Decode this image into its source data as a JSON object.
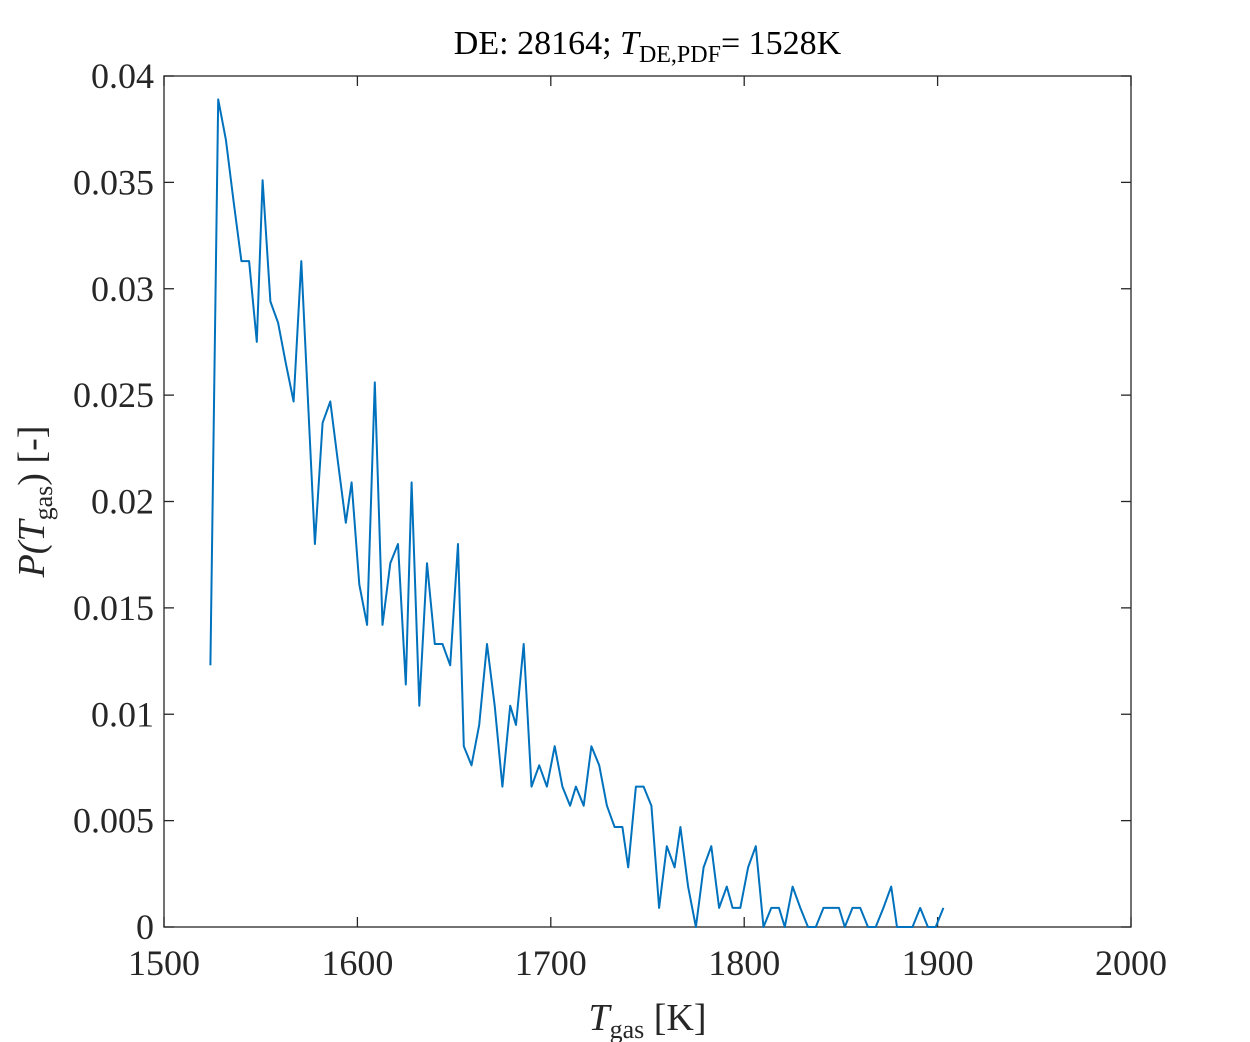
{
  "chart_data": {
    "type": "line",
    "title": "DE: 28164; T_DE,PDF= 1528K",
    "title_parts": {
      "prefix": "DE: 28164; ",
      "var": "T",
      "sub": "DE,PDF",
      "suffix": "= 1528K"
    },
    "xlabel": "T_gas [K]",
    "xlabel_parts": {
      "var": "T",
      "sub": "gas",
      "suffix": " [K]"
    },
    "ylabel": "P(T_gas) [-]",
    "ylabel_parts": {
      "prefix": "P(",
      "var": "T",
      "sub": "gas",
      "suffix": ") [-]"
    },
    "xlim": [
      1500,
      2000
    ],
    "ylim": [
      0,
      0.04
    ],
    "xticks": [
      1500,
      1600,
      1700,
      1800,
      1900,
      2000
    ],
    "xtick_labels": [
      "1500",
      "1600",
      "1700",
      "1800",
      "1900",
      "2000"
    ],
    "yticks": [
      0,
      0.005,
      0.01,
      0.015,
      0.02,
      0.025,
      0.03,
      0.035,
      0.04
    ],
    "ytick_labels": [
      "0",
      "0.005",
      "0.01",
      "0.015",
      "0.02",
      "0.025",
      "0.03",
      "0.035",
      "0.04"
    ],
    "grid": false,
    "line_color": "#0072BD",
    "axis_color": "#262626",
    "series": [
      {
        "x": [
          1524,
          1528,
          1532,
          1536,
          1540,
          1544,
          1548,
          1551,
          1555,
          1559,
          1563,
          1567,
          1571,
          1574,
          1578,
          1582,
          1586,
          1590,
          1594,
          1597,
          1601,
          1605,
          1609,
          1613,
          1617,
          1621,
          1625,
          1628,
          1632,
          1636,
          1640,
          1644,
          1648,
          1652,
          1655,
          1659,
          1663,
          1667,
          1671,
          1675,
          1679,
          1682,
          1686,
          1690,
          1694,
          1698,
          1702,
          1706,
          1710,
          1713,
          1717,
          1721,
          1725,
          1729,
          1733,
          1737,
          1740,
          1744,
          1748,
          1752,
          1756,
          1760,
          1764,
          1767,
          1771,
          1775,
          1779,
          1783,
          1787,
          1791,
          1794,
          1798,
          1802,
          1806,
          1810,
          1814,
          1818,
          1821,
          1825,
          1829,
          1833,
          1837,
          1841,
          1845,
          1849,
          1852,
          1856,
          1860,
          1864,
          1868,
          1872,
          1876,
          1879,
          1883,
          1887,
          1891,
          1895,
          1899,
          1903
        ],
        "y": [
          0.0123,
          0.0389,
          0.037,
          0.0341,
          0.0313,
          0.0313,
          0.0275,
          0.0351,
          0.0294,
          0.0284,
          0.0265,
          0.0247,
          0.0313,
          0.0256,
          0.018,
          0.0237,
          0.0247,
          0.0218,
          0.019,
          0.0209,
          0.0161,
          0.0142,
          0.0256,
          0.0142,
          0.0171,
          0.018,
          0.0114,
          0.0209,
          0.0104,
          0.0171,
          0.0133,
          0.0133,
          0.0123,
          0.018,
          0.0085,
          0.0076,
          0.0095,
          0.0133,
          0.0104,
          0.0066,
          0.0104,
          0.0095,
          0.0133,
          0.0066,
          0.0076,
          0.0066,
          0.0085,
          0.0066,
          0.0057,
          0.0066,
          0.0057,
          0.0085,
          0.0076,
          0.0057,
          0.0047,
          0.0047,
          0.0028,
          0.0066,
          0.0066,
          0.0057,
          0.0009,
          0.0038,
          0.0028,
          0.0047,
          0.0019,
          0.0,
          0.0028,
          0.0038,
          0.0009,
          0.0019,
          0.0009,
          0.0009,
          0.0028,
          0.0038,
          0.0,
          0.0009,
          0.0009,
          0.0,
          0.0019,
          0.0009,
          0.0,
          0.0,
          0.0009,
          0.0009,
          0.0009,
          0.0,
          0.0009,
          0.0009,
          0.0,
          0.0,
          0.0009,
          0.0019,
          0.0,
          0.0,
          0.0,
          0.0009,
          0.0,
          0.0,
          0.0009
        ]
      }
    ]
  }
}
